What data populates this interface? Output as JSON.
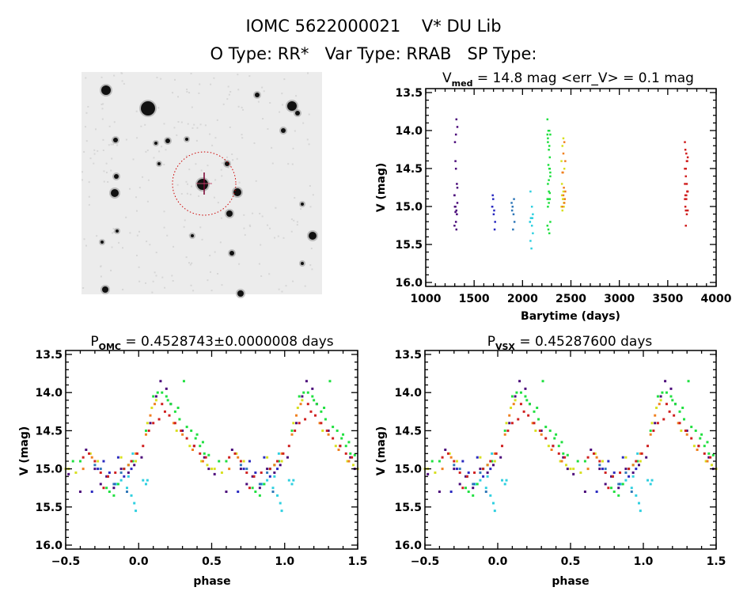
{
  "header": {
    "line1": "IOMC 5622000021    V* DU Lib",
    "line2": "O Type: RR*   Var Type: RRAB   SP Type:"
  },
  "finder_chart": {
    "type": "image",
    "content": "grayscale sky image with red dotted circle and cross marking target star"
  },
  "colors": {
    "frame": "#000000",
    "finder_background": "#ececec",
    "circle": "#cc0000"
  },
  "series": [
    {
      "color": "#4b0a7a",
      "barytime": 1310,
      "points": [
        [
          0.02,
          14.85
        ],
        [
          0.08,
          14.4
        ],
        [
          0.15,
          13.85
        ],
        [
          0.19,
          13.95
        ],
        [
          0.22,
          14.15
        ],
        [
          0.3,
          14.5
        ],
        [
          0.38,
          14.7
        ],
        [
          0.45,
          14.85
        ],
        [
          0.52,
          15.07
        ],
        [
          0.6,
          15.3
        ],
        [
          0.64,
          14.75
        ],
        [
          0.7,
          15.0
        ],
        [
          0.74,
          15.2
        ],
        [
          0.78,
          15.1
        ],
        [
          0.83,
          15.25
        ],
        [
          0.88,
          15.0
        ],
        [
          0.93,
          15.05
        ],
        [
          0.97,
          14.95
        ],
        [
          0.48,
          15.0
        ],
        [
          0.12,
          14.05
        ]
      ]
    },
    {
      "color": "#2a2ac0",
      "barytime": 1700,
      "points": [
        [
          0.72,
          15.0
        ],
        [
          0.76,
          14.9
        ],
        [
          0.8,
          15.05
        ],
        [
          0.84,
          15.2
        ],
        [
          0.86,
          14.85
        ],
        [
          0.9,
          15.1
        ],
        [
          0.68,
          15.3
        ],
        [
          0.95,
          15.0
        ]
      ]
    },
    {
      "color": "#3078b8",
      "barytime": 1900,
      "points": [
        [
          0.7,
          14.95
        ],
        [
          0.74,
          15.0
        ],
        [
          0.79,
          15.1
        ],
        [
          0.83,
          15.2
        ],
        [
          0.88,
          15.05
        ],
        [
          0.92,
          15.3
        ],
        [
          0.96,
          14.9
        ]
      ]
    },
    {
      "color": "#30d0e0",
      "barytime": 2090,
      "points": [
        [
          0.85,
          15.2
        ],
        [
          0.88,
          15.15
        ],
        [
          0.92,
          15.25
        ],
        [
          0.95,
          15.35
        ],
        [
          0.97,
          15.45
        ],
        [
          0.98,
          15.55
        ],
        [
          0.03,
          15.15
        ],
        [
          0.05,
          15.2
        ],
        [
          0.06,
          15.15
        ],
        [
          0.9,
          15.0
        ],
        [
          0.93,
          15.1
        ],
        [
          0.96,
          14.8
        ]
      ]
    },
    {
      "color": "#20e040",
      "barytime": 2270,
      "points": [
        [
          0.1,
          14.05
        ],
        [
          0.13,
          14.0
        ],
        [
          0.16,
          14.0
        ],
        [
          0.19,
          14.05
        ],
        [
          0.22,
          14.15
        ],
        [
          0.25,
          14.25
        ],
        [
          0.28,
          14.35
        ],
        [
          0.31,
          13.85
        ],
        [
          0.33,
          14.45
        ],
        [
          0.36,
          14.5
        ],
        [
          0.39,
          14.6
        ],
        [
          0.42,
          14.7
        ],
        [
          0.45,
          14.8
        ],
        [
          0.48,
          14.82
        ],
        [
          0.78,
          15.25
        ],
        [
          0.8,
          15.3
        ],
        [
          0.83,
          15.35
        ],
        [
          0.86,
          15.2
        ],
        [
          0.9,
          15.0
        ],
        [
          0.93,
          14.95
        ],
        [
          0.96,
          14.9
        ],
        [
          0.6,
          14.9
        ],
        [
          0.55,
          14.9
        ],
        [
          0.27,
          14.2
        ],
        [
          0.4,
          14.55
        ],
        [
          0.2,
          14.1
        ],
        [
          0.44,
          14.65
        ],
        [
          0.05,
          14.5
        ]
      ]
    },
    {
      "color": "#d8e020",
      "barytime": 2415,
      "points": [
        [
          0.06,
          14.4
        ],
        [
          0.09,
          14.2
        ],
        [
          0.12,
          14.1
        ],
        [
          0.26,
          14.5
        ],
        [
          0.35,
          14.7
        ],
        [
          0.43,
          14.9
        ],
        [
          0.47,
          14.95
        ],
        [
          0.52,
          15.0
        ],
        [
          0.57,
          15.05
        ],
        [
          0.67,
          14.8
        ],
        [
          0.72,
          14.9
        ],
        [
          0.88,
          14.85
        ],
        [
          0.98,
          14.9
        ],
        [
          0.5,
          15.0
        ]
      ]
    },
    {
      "color": "#f08020",
      "barytime": 2425,
      "points": [
        [
          0.05,
          14.55
        ],
        [
          0.08,
          14.3
        ],
        [
          0.11,
          14.15
        ],
        [
          0.24,
          14.4
        ],
        [
          0.3,
          14.55
        ],
        [
          0.37,
          14.75
        ],
        [
          0.44,
          14.9
        ],
        [
          0.62,
          15.0
        ],
        [
          0.68,
          14.85
        ],
        [
          0.93,
          14.95
        ],
        [
          0.98,
          14.8
        ]
      ]
    },
    {
      "color": "#d02020",
      "barytime": 3690,
      "points": [
        [
          0.03,
          14.7
        ],
        [
          0.07,
          14.5
        ],
        [
          0.1,
          14.4
        ],
        [
          0.14,
          14.35
        ],
        [
          0.18,
          14.25
        ],
        [
          0.21,
          14.3
        ],
        [
          0.25,
          14.4
        ],
        [
          0.29,
          14.5
        ],
        [
          0.33,
          14.6
        ],
        [
          0.38,
          14.7
        ],
        [
          0.42,
          14.8
        ],
        [
          0.46,
          14.85
        ],
        [
          0.62,
          14.85
        ],
        [
          0.66,
          14.8
        ],
        [
          0.7,
          14.9
        ],
        [
          0.74,
          15.05
        ],
        [
          0.79,
          15.1
        ],
        [
          0.84,
          15.05
        ],
        [
          0.9,
          15.0
        ],
        [
          0.95,
          14.9
        ],
        [
          0.99,
          14.8
        ],
        [
          0.16,
          14.15
        ],
        [
          0.76,
          15.25
        ]
      ]
    }
  ],
  "chart_data": [
    {
      "type": "scatter",
      "title_main": "V",
      "title_sub": "med",
      "title_rest": " = 14.8 mag <err_V> = 0.1 mag",
      "xlabel": "Barytime (days)",
      "ylabel": "V (mag)",
      "xlim": [
        1000,
        4000
      ],
      "ylim": [
        16.0,
        13.5
      ],
      "y_inverted": true,
      "xticks": [
        "1000",
        "1500",
        "2000",
        "2500",
        "3000",
        "3500",
        "4000"
      ],
      "yticks": [
        "13.5",
        "14.0",
        "14.5",
        "15.0",
        "15.5",
        "16.0"
      ],
      "grid": false,
      "x_source": "barytime"
    },
    {
      "type": "scatter",
      "title_main": "P",
      "title_sub": "OMC",
      "title_rest": " = 0.4528743±0.0000008 days",
      "xlabel": "phase",
      "ylabel": "V (mag)",
      "xlim": [
        -0.5,
        1.5
      ],
      "ylim": [
        16.0,
        13.5
      ],
      "y_inverted": true,
      "xticks": [
        "−0.5",
        "0.0",
        "0.5",
        "1.0",
        "1.5"
      ],
      "yticks": [
        "13.5",
        "14.0",
        "14.5",
        "15.0",
        "15.5",
        "16.0"
      ],
      "grid": false,
      "x_source": "phase"
    },
    {
      "type": "scatter",
      "title_main": "P",
      "title_sub": "VSX",
      "title_rest": " = 0.45287600 days",
      "xlabel": "phase",
      "ylabel": "V (mag)",
      "xlim": [
        -0.5,
        1.5
      ],
      "ylim": [
        16.0,
        13.5
      ],
      "y_inverted": true,
      "xticks": [
        "−0.5",
        "0.0",
        "0.5",
        "1.0",
        "1.5"
      ],
      "yticks": [
        "13.5",
        "14.0",
        "14.5",
        "15.0",
        "15.5",
        "16.0"
      ],
      "grid": false,
      "x_source": "phase"
    }
  ]
}
